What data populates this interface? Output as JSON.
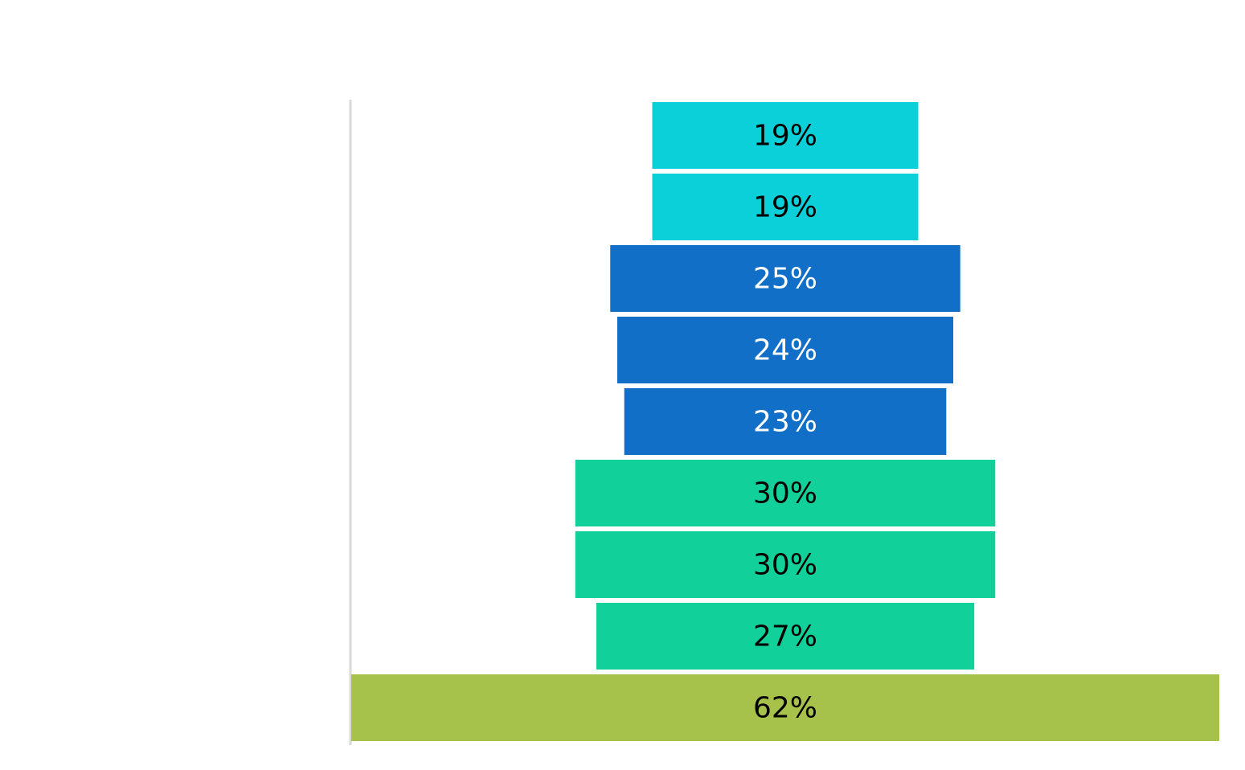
{
  "chart_data": {
    "type": "funnel",
    "categories": [
      null,
      null,
      null,
      null,
      null,
      null,
      null,
      null,
      null
    ],
    "values": [
      19,
      19,
      25,
      24,
      23,
      30,
      30,
      27,
      62
    ],
    "value_labels": [
      "19%",
      "19%",
      "25%",
      "24%",
      "23%",
      "30%",
      "30%",
      "27%",
      "62%"
    ],
    "colors": [
      "#0bd0d9",
      "#0bd0d9",
      "#116fc8",
      "#116fc8",
      "#116fc8",
      "#12d09a",
      "#12d09a",
      "#12d09a",
      "#a7c24a"
    ]
  }
}
